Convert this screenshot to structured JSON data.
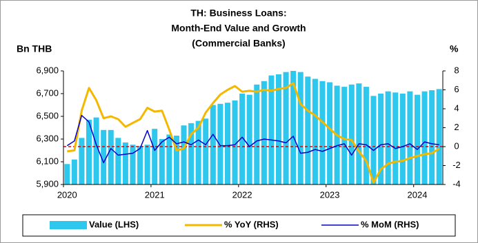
{
  "chart_data": {
    "type": "bar_line",
    "title": [
      "TH: Business Loans:",
      "Month-End Value and Growth",
      "(Commercial Banks)"
    ],
    "ylabel": "Bn THB",
    "y2label": "%",
    "categories": [
      "2020",
      null,
      null,
      null,
      null,
      null,
      null,
      null,
      null,
      null,
      null,
      null,
      "2021",
      null,
      null,
      null,
      null,
      null,
      null,
      null,
      null,
      null,
      null,
      null,
      "2022",
      null,
      null,
      null,
      null,
      null,
      null,
      null,
      null,
      null,
      null,
      null,
      "2023",
      null,
      null,
      null,
      null,
      null,
      null,
      null,
      null,
      null,
      null,
      null,
      "2024",
      null,
      null,
      null
    ],
    "series": [
      {
        "name": "Value (LHS)",
        "kind": "bar",
        "color": "#2ec8ef",
        "values": [
          6080,
          6120,
          6310,
          6470,
          6490,
          6380,
          6380,
          6310,
          6270,
          6250,
          6240,
          6250,
          6390,
          6300,
          6340,
          6330,
          6420,
          6440,
          6460,
          6480,
          6600,
          6610,
          6620,
          6640,
          6700,
          6690,
          6780,
          6810,
          6860,
          6870,
          6890,
          6900,
          6890,
          6850,
          6830,
          6810,
          6800,
          6770,
          6760,
          6780,
          6790,
          6760,
          6680,
          6700,
          6720,
          6710,
          6700,
          6720,
          6690,
          6720,
          6730,
          6740
        ]
      },
      {
        "name": "% YoY (RHS)",
        "kind": "line",
        "axis": "y2",
        "color": "#f5b800",
        "width": 3,
        "values": [
          -0.5,
          -0.4,
          3.8,
          6.2,
          4.9,
          3.0,
          3.2,
          2.9,
          2.1,
          2.5,
          2.9,
          4.1,
          3.7,
          3.8,
          1.8,
          -0.4,
          -0.2,
          1.3,
          2.0,
          3.6,
          4.6,
          5.5,
          6.0,
          6.4,
          5.8,
          5.9,
          5.8,
          6.0,
          5.9,
          6.1,
          6.2,
          6.7,
          4.5,
          3.8,
          3.3,
          2.6,
          1.9,
          1.2,
          0.8,
          0.7,
          -0.5,
          -1.5,
          -3.8,
          -2.4,
          -1.8,
          -1.6,
          -1.5,
          -1.2,
          -1.0,
          -0.8,
          -0.7,
          -0.2
        ]
      },
      {
        "name": "% MoM (RHS)",
        "kind": "line",
        "axis": "y2",
        "color": "#0000cc",
        "width": 1.5,
        "values": [
          0.1,
          0.6,
          3.3,
          2.6,
          0.2,
          -1.7,
          -0.2,
          -0.9,
          -0.8,
          -0.7,
          -0.2,
          1.7,
          -0.4,
          0.5,
          1.0,
          0.3,
          0.5,
          0.2,
          0.7,
          0.2,
          1.3,
          0.1,
          0.1,
          0.2,
          1.0,
          0.0,
          0.6,
          0.8,
          0.7,
          0.6,
          0.4,
          1.1,
          -0.7,
          -0.6,
          -0.3,
          -0.5,
          -0.2,
          0.1,
          0.3,
          -0.9,
          0.3,
          0.2,
          -0.4,
          0.2,
          0.3,
          -0.2,
          0.0,
          0.3,
          -0.3,
          0.5,
          0.3,
          0.2
        ]
      }
    ],
    "ylim": [
      5900,
      6900
    ],
    "yticks": [
      {
        "value": 5900,
        "label": "5,900"
      },
      {
        "value": 6100,
        "label": "6,100"
      },
      {
        "value": 6300,
        "label": "6,300"
      },
      {
        "value": 6500,
        "label": "6,500"
      },
      {
        "value": 6700,
        "label": "6,700"
      },
      {
        "value": 6900,
        "label": "6,900"
      }
    ],
    "y2lim": [
      -4,
      8
    ],
    "y2ticks": [
      -4,
      -2,
      0,
      2,
      4,
      6,
      8
    ],
    "reference_line": {
      "value": 0,
      "axis": "y2",
      "color": "#e00000"
    },
    "grid": false,
    "legend": "bottom"
  }
}
